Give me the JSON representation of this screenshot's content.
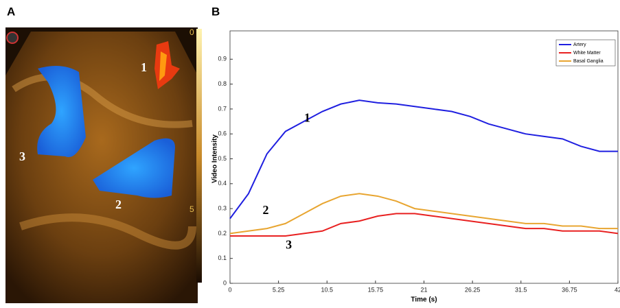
{
  "image_panel": {
    "label": "A",
    "regions": [
      "1",
      "2",
      "3"
    ],
    "scale_labels": [
      "0",
      "5"
    ]
  },
  "chart_data": {
    "type": "line",
    "panel_label": "B",
    "x_label": "Time (s)",
    "y_label": "Video Intensity",
    "x": [
      0,
      2,
      4,
      6,
      8,
      10,
      12,
      14,
      16,
      18,
      20,
      22,
      24,
      26,
      28,
      30,
      32,
      34,
      36,
      38,
      40,
      42
    ],
    "series": [
      {
        "name": "Artery",
        "color": "#1f1fe0",
        "values": [
          0.26,
          0.36,
          0.52,
          0.61,
          0.65,
          0.69,
          0.72,
          0.735,
          0.725,
          0.72,
          0.71,
          0.7,
          0.69,
          0.67,
          0.64,
          0.62,
          0.6,
          0.59,
          0.58,
          0.55,
          0.53,
          0.53
        ]
      },
      {
        "name": "White Matter",
        "color": "#e82020",
        "values": [
          0.19,
          0.19,
          0.19,
          0.19,
          0.2,
          0.21,
          0.24,
          0.25,
          0.27,
          0.28,
          0.28,
          0.27,
          0.26,
          0.25,
          0.24,
          0.23,
          0.22,
          0.22,
          0.21,
          0.21,
          0.21,
          0.2
        ]
      },
      {
        "name": "Basal Ganglia",
        "color": "#e8a530",
        "values": [
          0.2,
          0.21,
          0.22,
          0.24,
          0.28,
          0.32,
          0.35,
          0.36,
          0.35,
          0.33,
          0.3,
          0.29,
          0.28,
          0.27,
          0.26,
          0.25,
          0.24,
          0.24,
          0.23,
          0.23,
          0.22,
          0.22
        ]
      }
    ],
    "annotations": [
      "1",
      "2",
      "3"
    ],
    "xlim": [
      0,
      42
    ],
    "xticks": [
      0,
      5.25,
      10.5,
      15.75,
      21,
      26.25,
      31.5,
      36.75,
      42
    ],
    "ylim": [
      0,
      1
    ],
    "yticks": [
      0,
      0.1,
      0.2,
      0.3,
      0.4,
      0.5,
      0.6,
      0.7,
      0.8,
      0.9
    ],
    "legend": "upper-right"
  }
}
